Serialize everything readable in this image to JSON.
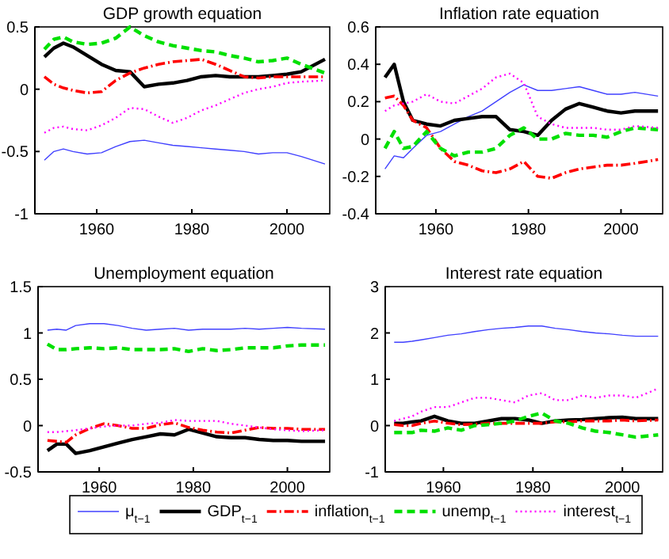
{
  "chart_data": [
    {
      "type": "line",
      "title": "GDP growth equation",
      "x": [
        1949,
        1951,
        1953,
        1955,
        1958,
        1961,
        1964,
        1967,
        1970,
        1973,
        1976,
        1979,
        1982,
        1985,
        1988,
        1991,
        1994,
        1997,
        2000,
        2003,
        2008
      ],
      "xlim": [
        1947,
        2009
      ],
      "xticks": [
        1960,
        1980,
        2000
      ],
      "ylim": [
        -1,
        0.5
      ],
      "yticks": [
        -1,
        {
          "value": -0.5,
          "label": "-0.5"
        },
        0,
        0.5
      ],
      "legend": "bottom",
      "series": [
        {
          "name": "μ$_{t−1}$",
          "color": "#4040ff",
          "line_style": "solid",
          "values": [
            -0.57,
            -0.5,
            -0.48,
            -0.5,
            -0.52,
            -0.51,
            -0.46,
            -0.42,
            -0.41,
            -0.43,
            -0.45,
            -0.46,
            -0.47,
            -0.48,
            -0.49,
            -0.5,
            -0.52,
            -0.51,
            -0.51,
            -0.54,
            -0.6
          ]
        },
        {
          "name": "GDP$_{t−1}$",
          "color": "#000000",
          "line_style": "solid",
          "values": [
            0.26,
            0.33,
            0.37,
            0.34,
            0.27,
            0.2,
            0.15,
            0.14,
            0.02,
            0.04,
            0.05,
            0.07,
            0.1,
            0.11,
            0.1,
            0.1,
            0.1,
            0.11,
            0.12,
            0.14,
            0.24
          ]
        },
        {
          "name": "inflation$_{t−1}$",
          "color": "#ff0000",
          "line_style": "dashdot",
          "values": [
            0.1,
            0.04,
            0.01,
            -0.01,
            -0.03,
            -0.02,
            0.07,
            0.13,
            0.17,
            0.2,
            0.22,
            0.23,
            0.24,
            0.2,
            0.15,
            0.1,
            0.09,
            0.1,
            0.1,
            0.1,
            0.1
          ]
        },
        {
          "name": "unemp$_{t−1}$",
          "color": "#00e000",
          "line_style": "dashed",
          "values": [
            0.32,
            0.4,
            0.42,
            0.38,
            0.36,
            0.37,
            0.41,
            0.5,
            0.43,
            0.38,
            0.35,
            0.33,
            0.31,
            0.3,
            0.27,
            0.25,
            0.22,
            0.23,
            0.25,
            0.2,
            0.13
          ]
        },
        {
          "name": "interest$_{t−1}$",
          "color": "#ff00ff",
          "line_style": "dotted",
          "values": [
            -0.35,
            -0.31,
            -0.3,
            -0.32,
            -0.33,
            -0.29,
            -0.23,
            -0.15,
            -0.16,
            -0.22,
            -0.27,
            -0.23,
            -0.17,
            -0.13,
            -0.08,
            -0.03,
            0.0,
            0.02,
            0.05,
            0.06,
            0.07
          ]
        }
      ]
    },
    {
      "type": "line",
      "title": "Inflation rate equation",
      "x": [
        1949,
        1951,
        1953,
        1955,
        1958,
        1961,
        1964,
        1967,
        1970,
        1973,
        1976,
        1979,
        1982,
        1985,
        1988,
        1991,
        1994,
        1997,
        2000,
        2003,
        2008
      ],
      "xlim": [
        1947,
        2009
      ],
      "xticks": [
        1960,
        1980,
        2000
      ],
      "ylim": [
        -0.4,
        0.6
      ],
      "yticks": [
        -0.4,
        -0.2,
        0,
        0.2,
        0.4,
        0.6
      ],
      "series": [
        {
          "color": "#4040ff",
          "line_style": "solid",
          "values": [
            -0.16,
            -0.09,
            -0.1,
            -0.05,
            0.02,
            0.04,
            0.08,
            0.12,
            0.15,
            0.2,
            0.25,
            0.29,
            0.26,
            0.26,
            0.27,
            0.28,
            0.26,
            0.24,
            0.24,
            0.25,
            0.23
          ]
        },
        {
          "color": "#000000",
          "line_style": "solid",
          "values": [
            0.33,
            0.4,
            0.2,
            0.1,
            0.08,
            0.07,
            0.1,
            0.11,
            0.12,
            0.12,
            0.05,
            0.04,
            0.02,
            0.1,
            0.16,
            0.19,
            0.17,
            0.15,
            0.14,
            0.15,
            0.15
          ]
        },
        {
          "color": "#ff0000",
          "line_style": "dashdot",
          "values": [
            0.22,
            0.23,
            0.18,
            0.1,
            0.06,
            -0.05,
            -0.12,
            -0.14,
            -0.17,
            -0.18,
            -0.16,
            -0.12,
            -0.2,
            -0.21,
            -0.18,
            -0.16,
            -0.15,
            -0.14,
            -0.14,
            -0.13,
            -0.11
          ]
        },
        {
          "color": "#00e000",
          "line_style": "dashed",
          "values": [
            -0.05,
            0.04,
            -0.05,
            -0.04,
            0.04,
            -0.05,
            -0.09,
            -0.07,
            -0.07,
            -0.05,
            0.02,
            0.06,
            0.0,
            0.0,
            0.03,
            0.02,
            0.02,
            0.01,
            0.04,
            0.06,
            0.05
          ]
        },
        {
          "color": "#ff00ff",
          "line_style": "dotted",
          "values": [
            0.15,
            0.18,
            0.19,
            0.2,
            0.24,
            0.2,
            0.19,
            0.23,
            0.27,
            0.33,
            0.35,
            0.3,
            0.12,
            0.08,
            0.06,
            0.06,
            0.06,
            0.05,
            0.05,
            0.07,
            0.06
          ]
        }
      ]
    },
    {
      "type": "line",
      "title": "Unemployment equation",
      "x": [
        1949,
        1951,
        1953,
        1955,
        1958,
        1961,
        1964,
        1967,
        1970,
        1973,
        1976,
        1979,
        1982,
        1985,
        1988,
        1991,
        1994,
        1997,
        2000,
        2003,
        2008
      ],
      "xlim": [
        1947,
        2009
      ],
      "xticks": [
        1960,
        1980,
        2000
      ],
      "ylim": [
        -0.5,
        1.5
      ],
      "yticks": [
        -0.5,
        0,
        0.5,
        1,
        1.5
      ],
      "series": [
        {
          "color": "#4040ff",
          "line_style": "solid",
          "values": [
            1.03,
            1.04,
            1.03,
            1.08,
            1.1,
            1.1,
            1.08,
            1.05,
            1.03,
            1.04,
            1.05,
            1.03,
            1.04,
            1.04,
            1.04,
            1.05,
            1.04,
            1.05,
            1.06,
            1.05,
            1.04
          ]
        },
        {
          "color": "#000000",
          "line_style": "solid",
          "values": [
            -0.27,
            -0.2,
            -0.2,
            -0.3,
            -0.27,
            -0.23,
            -0.19,
            -0.15,
            -0.12,
            -0.09,
            -0.1,
            -0.04,
            -0.08,
            -0.12,
            -0.13,
            -0.13,
            -0.15,
            -0.16,
            -0.16,
            -0.17,
            -0.17
          ]
        },
        {
          "color": "#ff0000",
          "line_style": "dashdot",
          "values": [
            -0.16,
            -0.17,
            -0.18,
            -0.1,
            -0.03,
            0.02,
            0.0,
            -0.03,
            -0.03,
            0.01,
            0.03,
            -0.02,
            -0.05,
            -0.07,
            -0.08,
            -0.05,
            -0.02,
            -0.03,
            -0.03,
            -0.04,
            -0.04
          ]
        },
        {
          "color": "#00e000",
          "line_style": "dashed",
          "values": [
            0.88,
            0.82,
            0.82,
            0.83,
            0.84,
            0.83,
            0.84,
            0.82,
            0.82,
            0.82,
            0.83,
            0.8,
            0.83,
            0.81,
            0.82,
            0.84,
            0.84,
            0.84,
            0.86,
            0.87,
            0.87
          ]
        },
        {
          "color": "#ff00ff",
          "line_style": "dotted",
          "values": [
            -0.07,
            -0.07,
            -0.06,
            -0.05,
            -0.03,
            -0.01,
            0.0,
            0.0,
            0.02,
            0.03,
            0.06,
            0.05,
            0.05,
            0.05,
            0.02,
            0.0,
            -0.02,
            -0.04,
            -0.05,
            -0.06,
            -0.05
          ]
        }
      ]
    },
    {
      "type": "line",
      "title": "Interest rate equation",
      "x": [
        1949,
        1951,
        1953,
        1955,
        1958,
        1961,
        1964,
        1967,
        1970,
        1973,
        1976,
        1979,
        1982,
        1985,
        1988,
        1991,
        1994,
        1997,
        2000,
        2003,
        2008
      ],
      "xlim": [
        1947,
        2009
      ],
      "xticks": [
        1960,
        1980,
        2000
      ],
      "ylim": [
        -1,
        3
      ],
      "yticks": [
        -1,
        0,
        1,
        2,
        3
      ],
      "series": [
        {
          "color": "#4040ff",
          "line_style": "solid",
          "values": [
            1.8,
            1.8,
            1.82,
            1.85,
            1.9,
            1.95,
            1.98,
            2.03,
            2.07,
            2.1,
            2.12,
            2.15,
            2.15,
            2.1,
            2.07,
            2.03,
            2.0,
            1.98,
            1.95,
            1.93,
            1.93
          ]
        },
        {
          "color": "#000000",
          "line_style": "solid",
          "values": [
            0.05,
            0.05,
            0.08,
            0.1,
            0.2,
            0.1,
            0.05,
            0.05,
            0.1,
            0.15,
            0.15,
            0.12,
            0.05,
            0.1,
            0.12,
            0.13,
            0.15,
            0.17,
            0.18,
            0.15,
            0.15
          ]
        },
        {
          "color": "#ff0000",
          "line_style": "dashdot",
          "values": [
            0.02,
            0.0,
            0.0,
            0.05,
            0.1,
            0.05,
            0.02,
            0.03,
            0.05,
            0.05,
            0.05,
            0.05,
            0.05,
            0.08,
            0.08,
            0.1,
            0.1,
            0.1,
            0.12,
            0.1,
            0.12
          ]
        },
        {
          "color": "#00e000",
          "line_style": "dashed",
          "values": [
            -0.15,
            -0.15,
            -0.15,
            -0.1,
            -0.12,
            -0.05,
            -0.1,
            0.0,
            0.02,
            0.05,
            0.1,
            0.2,
            0.27,
            0.1,
            0.05,
            -0.05,
            -0.12,
            -0.15,
            -0.2,
            -0.25,
            -0.2
          ]
        },
        {
          "color": "#ff00ff",
          "line_style": "dotted",
          "values": [
            0.1,
            0.15,
            0.2,
            0.3,
            0.4,
            0.4,
            0.5,
            0.6,
            0.6,
            0.55,
            0.5,
            0.65,
            0.7,
            0.55,
            0.55,
            0.65,
            0.6,
            0.65,
            0.65,
            0.6,
            0.8
          ]
        }
      ]
    }
  ]
}
